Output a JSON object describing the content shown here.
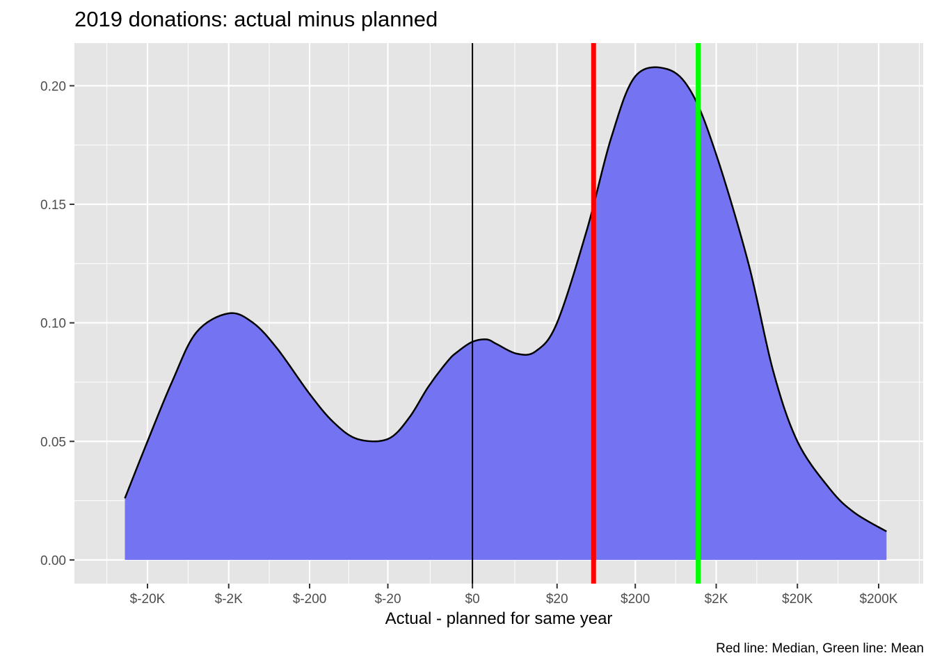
{
  "chart_data": {
    "type": "area",
    "title": "2019 donations: actual minus planned",
    "xlabel": "Actual - planned for same year",
    "ylabel": "",
    "caption": "Red line: Median, Green line: Mean",
    "x_scale": "pseudo-log",
    "ylim": [
      -0.01,
      0.218
    ],
    "grid": true,
    "y_ticks": [
      {
        "value": 0.0,
        "label": "0.00"
      },
      {
        "value": 0.05,
        "label": "0.05"
      },
      {
        "value": 0.1,
        "label": "0.10"
      },
      {
        "value": 0.15,
        "label": "0.15"
      },
      {
        "value": 0.2,
        "label": "0.20"
      }
    ],
    "x_ticks": [
      {
        "value": -20000,
        "label": "$-20K"
      },
      {
        "value": -2000,
        "label": "$-2K"
      },
      {
        "value": -200,
        "label": "$-200"
      },
      {
        "value": -20,
        "label": "$-20"
      },
      {
        "value": 0,
        "label": "$0"
      },
      {
        "value": 20,
        "label": "$20"
      },
      {
        "value": 200,
        "label": "$200"
      },
      {
        "value": 2000,
        "label": "$2K"
      },
      {
        "value": 20000,
        "label": "$20K"
      },
      {
        "value": 200000,
        "label": "$200K"
      }
    ],
    "series": [
      {
        "x": [
          -38000,
          -20000,
          -10000,
          -5000,
          -2000,
          -1000,
          -500,
          -200,
          -100,
          -50,
          -20,
          -10,
          -5,
          -2,
          -1,
          0,
          1,
          2,
          5,
          10,
          20,
          50,
          100,
          200,
          500,
          1000,
          2000,
          5000,
          10000,
          20000,
          50000,
          100000,
          250000
        ],
        "y": [
          0.026,
          0.05,
          0.075,
          0.096,
          0.104,
          0.1,
          0.089,
          0.07,
          0.058,
          0.051,
          0.051,
          0.06,
          0.073,
          0.084,
          0.088,
          0.092,
          0.093,
          0.091,
          0.087,
          0.088,
          0.1,
          0.14,
          0.178,
          0.204,
          0.207,
          0.197,
          0.171,
          0.125,
          0.08,
          0.05,
          0.03,
          0.02,
          0.012
        ],
        "fill": "#7474f2",
        "stroke": "#000000"
      }
    ],
    "reference_lines": [
      {
        "x": 0,
        "color": "#000000",
        "role": "zero"
      },
      {
        "x": 60,
        "color": "#ff0000",
        "role": "median"
      },
      {
        "x": 1200,
        "color": "#00ff00",
        "role": "mean"
      }
    ],
    "panel_background": "#e5e5e5",
    "grid_color": "#ffffff"
  }
}
